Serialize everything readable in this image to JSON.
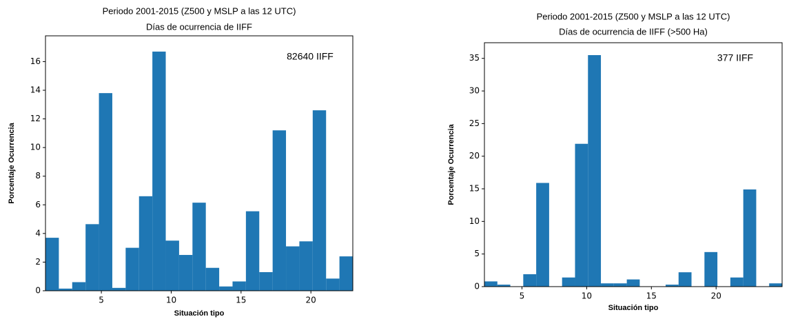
{
  "chart_data": [
    {
      "type": "histogram",
      "title": [
        "Periodo 2001-2015 (Z500 y MSLP a las 12 UTC)",
        "Días de ocurrencia de IIFF"
      ],
      "annotation": "82640 IIFF",
      "x_label": "Situación tipo",
      "y_label": "Porcentaje Ocurrencia",
      "color": "#1f77b4",
      "bins": [
        1,
        1.957,
        2.913,
        3.87,
        4.826,
        5.783,
        6.739,
        7.696,
        8.652,
        9.609,
        10.565,
        11.522,
        12.478,
        13.435,
        14.391,
        15.348,
        16.304,
        17.261,
        18.217,
        19.174,
        20.13,
        21.087,
        22.043,
        23
      ],
      "values": [
        3.7,
        0.15,
        0.6,
        4.65,
        13.8,
        0.2,
        3.0,
        6.6,
        16.7,
        3.5,
        2.5,
        6.15,
        1.6,
        0.3,
        0.65,
        5.55,
        1.3,
        11.2,
        3.1,
        3.45,
        12.6,
        0.85,
        2.4
      ],
      "xlim": [
        1,
        23
      ],
      "xticks": [
        5,
        10,
        15,
        20
      ],
      "ylim": [
        0,
        17.8
      ],
      "yticks": [
        0,
        2,
        4,
        6,
        8,
        10,
        12,
        14,
        16
      ]
    },
    {
      "type": "histogram",
      "title": [
        "Periodo 2001-2015 (Z500 y MSLP a las 12 UTC)",
        "Días de ocurrencia de IIFF (>500 Ha)"
      ],
      "annotation": "377 IIFF",
      "x_label": "Situación tipo",
      "y_label": "Porcentaje Ocurrencia",
      "color": "#1f77b4",
      "bins": [
        2.1,
        3.1,
        4.1,
        5.1,
        6.1,
        7.1,
        8.1,
        9.1,
        10.1,
        11.1,
        12.1,
        13.1,
        14.1,
        15.1,
        16.1,
        17.1,
        18.1,
        19.1,
        20.1,
        21.1,
        22.1,
        23.1,
        24.1,
        25.1
      ],
      "values": [
        0.8,
        0.3,
        0,
        1.9,
        15.9,
        0,
        1.4,
        21.9,
        35.5,
        0.5,
        0.5,
        1.1,
        0,
        0,
        0.3,
        2.2,
        0,
        5.3,
        0,
        1.4,
        14.9,
        0,
        0.5
      ],
      "xlim": [
        2.1,
        25.1
      ],
      "xticks": [
        5,
        10,
        15,
        20
      ],
      "ylim": [
        0,
        37.4
      ],
      "yticks": [
        0,
        5,
        10,
        15,
        20,
        25,
        30,
        35
      ]
    }
  ]
}
